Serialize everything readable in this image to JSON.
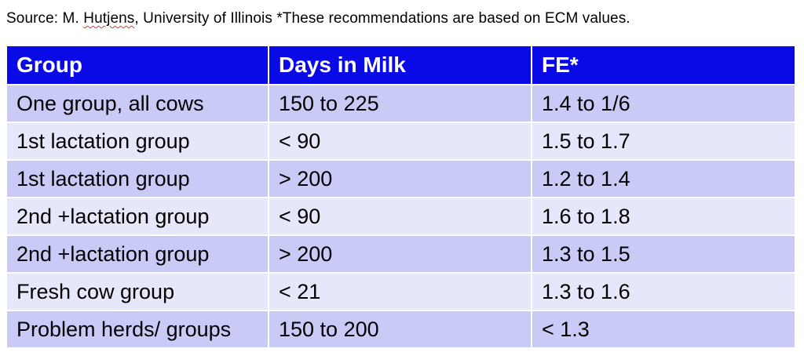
{
  "source": {
    "prefix": "Source: M. ",
    "author": "Hutjens",
    "suffix": ", University of Illinois *These recommendations are based on ECM values."
  },
  "table": {
    "headers": [
      "Group",
      "Days in Milk",
      "FE*"
    ],
    "rows": [
      [
        "One group, all cows",
        "150 to 225",
        "1.4 to 1/6"
      ],
      [
        "1st lactation group",
        "< 90",
        "1.5 to 1.7"
      ],
      [
        "1st lactation group",
        "> 200",
        "1.2 to 1.4"
      ],
      [
        "2nd +lactation group",
        "< 90",
        "1.6 to 1.8"
      ],
      [
        "2nd +lactation group",
        "> 200",
        "1.3 to 1.5"
      ],
      [
        "Fresh cow group",
        "< 21",
        "1.3 to 1.6"
      ],
      [
        "Problem herds/ groups",
        "150 to 200",
        "< 1.3"
      ]
    ]
  },
  "colors": {
    "header_bg": "#0a0ae6",
    "row_odd_bg": "#cacaf7",
    "row_even_bg": "#e7e7fb"
  }
}
